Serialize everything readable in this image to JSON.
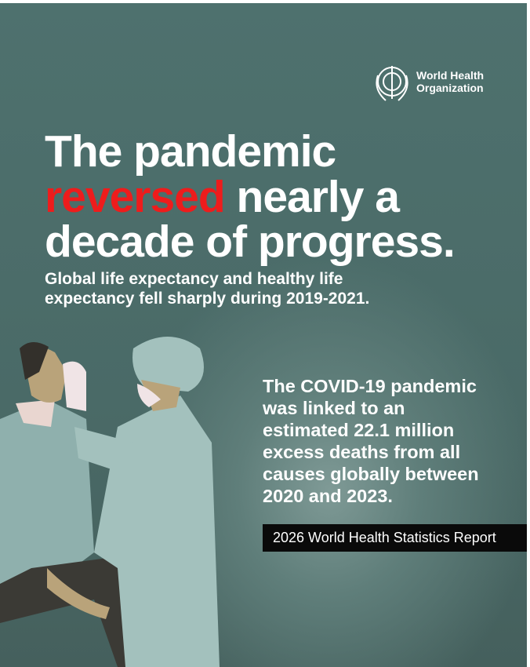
{
  "logo": {
    "line1": "World Health",
    "line2": "Organization"
  },
  "headline": {
    "line1": "The pandemic",
    "highlight": "reversed",
    "line2_rest": "nearly a",
    "line3": "decade of progress."
  },
  "subtitle": {
    "lines": [
      "Global life expectancy and healthy life",
      "expectancy fell sharply during 2019-2021."
    ]
  },
  "body": {
    "lines": [
      "The COVID-19 pandemic",
      "was linked to an",
      "estimated 22.1 million",
      "excess deaths from all",
      "causes globally between",
      "2020 and 2023."
    ]
  },
  "report_label": "2026 World Health Statistics Report"
}
